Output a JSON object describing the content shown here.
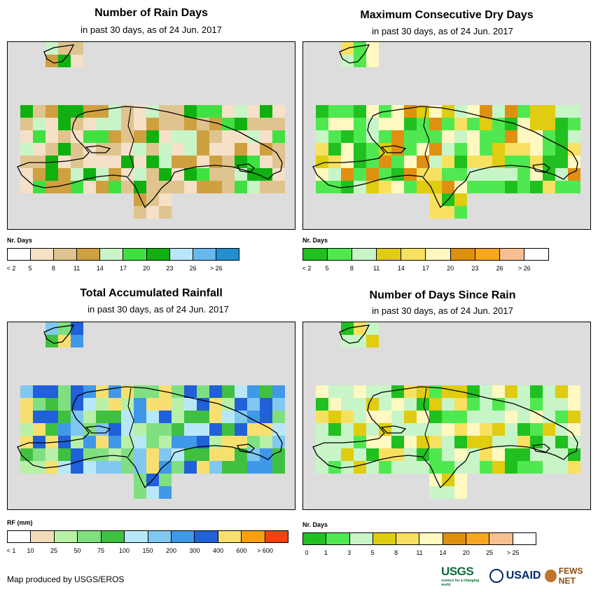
{
  "panels": [
    {
      "title": "Number of Rain Days",
      "subtitle": "in past 30 days, as of 24 Jun. 2017",
      "legend_title": "Nr. Days",
      "legend_colors": [
        "#ffffff",
        "#f5e1c8",
        "#e0c48f",
        "#cfa040",
        "#c8f5c8",
        "#40e040",
        "#10b010",
        "#b8e8f8",
        "#68b8f0",
        "#2090d0"
      ],
      "legend_labels": [
        "< 2",
        "5",
        "8",
        "11",
        "14",
        "17",
        "20",
        "23",
        "26",
        "> 26"
      ]
    },
    {
      "title": "Maximum Consecutive Dry Days",
      "subtitle": "in past 30 days, as of 24 Jun. 2017",
      "legend_title": "Nr. Days",
      "legend_colors": [
        "#20c020",
        "#50e850",
        "#c8f5c8",
        "#e0cc10",
        "#f8e060",
        "#fff8c0",
        "#e09010",
        "#f8a820",
        "#f8c090",
        "#ffffff"
      ],
      "legend_labels": [
        "< 2",
        "5",
        "8",
        "11",
        "14",
        "17",
        "20",
        "23",
        "26",
        "> 26"
      ]
    },
    {
      "title": "Total Accumulated Rainfall",
      "subtitle": "in past 30 days, as of 24 Jun. 2017",
      "legend_title": "RF (mm)",
      "legend_colors": [
        "#ffffff",
        "#f0dcb8",
        "#b8f0a8",
        "#80e080",
        "#40c040",
        "#b8e8f8",
        "#80c8f0",
        "#4098e8",
        "#2060d8",
        "#f8e070",
        "#f8a010",
        "#f84010"
      ],
      "legend_labels": [
        "< 1",
        "10",
        "25",
        "50",
        "75",
        "100",
        "150",
        "200",
        "300",
        "400",
        "600",
        "> 600"
      ]
    },
    {
      "title": "Number of Days Since Rain",
      "subtitle": "in past 30 days, as of 24 Jun. 2017",
      "legend_title": "Nr. Days",
      "legend_colors": [
        "#20c020",
        "#50e850",
        "#c8f5c8",
        "#e0cc10",
        "#f8e060",
        "#fff8c0",
        "#e09010",
        "#f8a820",
        "#f8c090",
        "#ffffff"
      ],
      "legend_labels": [
        "0",
        "1",
        "3",
        "5",
        "8",
        "11",
        "14",
        "20",
        "25",
        "> 25"
      ]
    }
  ],
  "credit": "Map produced by USGS/EROS",
  "logos": {
    "usgs": "USGS",
    "usgs_tagline": "science for a changing world",
    "usaid": "USAID",
    "fews": "FEWS NET"
  },
  "colors": {
    "map_background": "#dddddd",
    "coastline": "#000000"
  }
}
